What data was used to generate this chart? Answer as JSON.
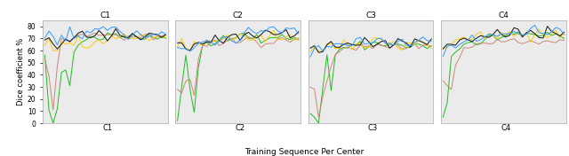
{
  "xlabel": "Training Sequence Per Center",
  "ylabel": "Dice coefficient %",
  "ylim": [
    0,
    85
  ],
  "yticks": [
    0,
    10,
    20,
    30,
    40,
    50,
    60,
    70,
    80
  ],
  "top_labels": [
    "C1",
    "C2",
    "C3",
    "C4"
  ],
  "bottom_labels": [
    "C1",
    "C2",
    "C3",
    "C4"
  ],
  "bg_color": "#ebebeb",
  "fig_bg_color": "#ffffff",
  "colors": {
    "blue": "#3399ff",
    "black": "#111111",
    "yellow": "#ffcc00",
    "green": "#22bb22",
    "salmon": "#cc8877"
  },
  "blue_data": [
    [
      67,
      75,
      72,
      68,
      73,
      71,
      75,
      70,
      73,
      72,
      74,
      76,
      77,
      79,
      80,
      79,
      78,
      79,
      76,
      74,
      72,
      70,
      73,
      72,
      71,
      74,
      73,
      72,
      75,
      74
    ],
    [
      59,
      60,
      62,
      65,
      64,
      66,
      66,
      67,
      68,
      68,
      69,
      70,
      69,
      68,
      70,
      71,
      72,
      75,
      76,
      77,
      76,
      75,
      76,
      77,
      77,
      76,
      77,
      77,
      78,
      76
    ],
    [
      54,
      60,
      62,
      63,
      64,
      65,
      64,
      65,
      65,
      66,
      65,
      66,
      67,
      67,
      67,
      68,
      68,
      68,
      68,
      68,
      67,
      68,
      68,
      67,
      68,
      68,
      67,
      68,
      68,
      68
    ],
    [
      55,
      62,
      64,
      65,
      67,
      68,
      68,
      69,
      70,
      71,
      71,
      72,
      73,
      74,
      74,
      75,
      75,
      74,
      75,
      76,
      76,
      75,
      76,
      75,
      76,
      75,
      76,
      77,
      76,
      75
    ]
  ],
  "black_data": [
    [
      68,
      70,
      68,
      64,
      65,
      68,
      70,
      72,
      71,
      73,
      72,
      74,
      73,
      72,
      73,
      71,
      72,
      73,
      72,
      72,
      71,
      73,
      72,
      71,
      73,
      72,
      71,
      73,
      72,
      71
    ],
    [
      65,
      66,
      63,
      62,
      64,
      65,
      66,
      67,
      68,
      69,
      69,
      70,
      71,
      71,
      72,
      72,
      73,
      73,
      74,
      74,
      73,
      74,
      73,
      74,
      74,
      73,
      74,
      73,
      74,
      74
    ],
    [
      58,
      61,
      62,
      63,
      63,
      64,
      64,
      63,
      64,
      64,
      65,
      66,
      65,
      66,
      66,
      66,
      66,
      67,
      67,
      66,
      66,
      67,
      66,
      67,
      66,
      67,
      67,
      66,
      67,
      66
    ],
    [
      59,
      63,
      65,
      66,
      68,
      69,
      70,
      71,
      71,
      72,
      72,
      73,
      74,
      73,
      74,
      74,
      74,
      75,
      75,
      74,
      75,
      74,
      75,
      75,
      74,
      75,
      74,
      75,
      74,
      75
    ]
  ],
  "yellow_data": [
    [
      65,
      66,
      60,
      62,
      65,
      64,
      66,
      63,
      67,
      65,
      66,
      64,
      65,
      68,
      67,
      70,
      71,
      70,
      72,
      71,
      70,
      72,
      70,
      71,
      72,
      70,
      71,
      70,
      72,
      71
    ],
    [
      65,
      66,
      64,
      62,
      63,
      65,
      67,
      66,
      68,
      68,
      70,
      69,
      70,
      69,
      70,
      71,
      70,
      71,
      71,
      72,
      71,
      72,
      71,
      72,
      71,
      72,
      71,
      70,
      71,
      72
    ],
    [
      58,
      60,
      61,
      62,
      64,
      63,
      64,
      63,
      65,
      64,
      63,
      65,
      66,
      65,
      64,
      65,
      66,
      67,
      66,
      65,
      65,
      66,
      65,
      64,
      65,
      66,
      65,
      64,
      65,
      65
    ],
    [
      58,
      63,
      65,
      67,
      69,
      70,
      71,
      72,
      72,
      73,
      72,
      74,
      73,
      74,
      75,
      74,
      75,
      74,
      73,
      72,
      73,
      72,
      73,
      74,
      73,
      72,
      73,
      74,
      73,
      72
    ]
  ],
  "green_data": [
    [
      55,
      11,
      0,
      12,
      42,
      44,
      31,
      58,
      66,
      69,
      68,
      70,
      71,
      70,
      71,
      73,
      72,
      73,
      72,
      72,
      70,
      72,
      71,
      72,
      70,
      72,
      71,
      70,
      72,
      71
    ],
    [
      2,
      30,
      56,
      28,
      9,
      46,
      63,
      65,
      66,
      67,
      68,
      70,
      69,
      70,
      71,
      72,
      73,
      72,
      72,
      73,
      65,
      67,
      69,
      70,
      71,
      70,
      71,
      72,
      71,
      70
    ],
    [
      8,
      5,
      0,
      29,
      58,
      27,
      56,
      61,
      62,
      63,
      64,
      64,
      65,
      64,
      65,
      65,
      66,
      65,
      65,
      65,
      63,
      65,
      64,
      65,
      64,
      65,
      64,
      65,
      64,
      64
    ],
    [
      5,
      17,
      55,
      60,
      63,
      65,
      66,
      67,
      68,
      69,
      70,
      71,
      71,
      72,
      72,
      73,
      73,
      74,
      74,
      73,
      72,
      73,
      74,
      73,
      74,
      73,
      72,
      74,
      73,
      72
    ]
  ],
  "salmon_data": [
    [
      53,
      39,
      11,
      47,
      71,
      67,
      70,
      71,
      72,
      72,
      73,
      73,
      72,
      73,
      72,
      73,
      72,
      73,
      71,
      70,
      72,
      71,
      72,
      71,
      73,
      72,
      71,
      72,
      71,
      72
    ],
    [
      28,
      25,
      35,
      36,
      23,
      51,
      64,
      65,
      66,
      67,
      66,
      67,
      68,
      67,
      68,
      68,
      69,
      70,
      69,
      68,
      62,
      64,
      66,
      68,
      69,
      68,
      69,
      68,
      69,
      68
    ],
    [
      30,
      28,
      5,
      22,
      35,
      47,
      58,
      61,
      62,
      62,
      63,
      63,
      63,
      64,
      64,
      64,
      65,
      65,
      64,
      64,
      63,
      64,
      63,
      64,
      63,
      64,
      63,
      64,
      63,
      63
    ],
    [
      35,
      31,
      28,
      48,
      55,
      61,
      63,
      64,
      65,
      65,
      66,
      67,
      66,
      67,
      68,
      68,
      69,
      69,
      68,
      67,
      68,
      67,
      68,
      67,
      68,
      67,
      68,
      67,
      68,
      67
    ]
  ]
}
